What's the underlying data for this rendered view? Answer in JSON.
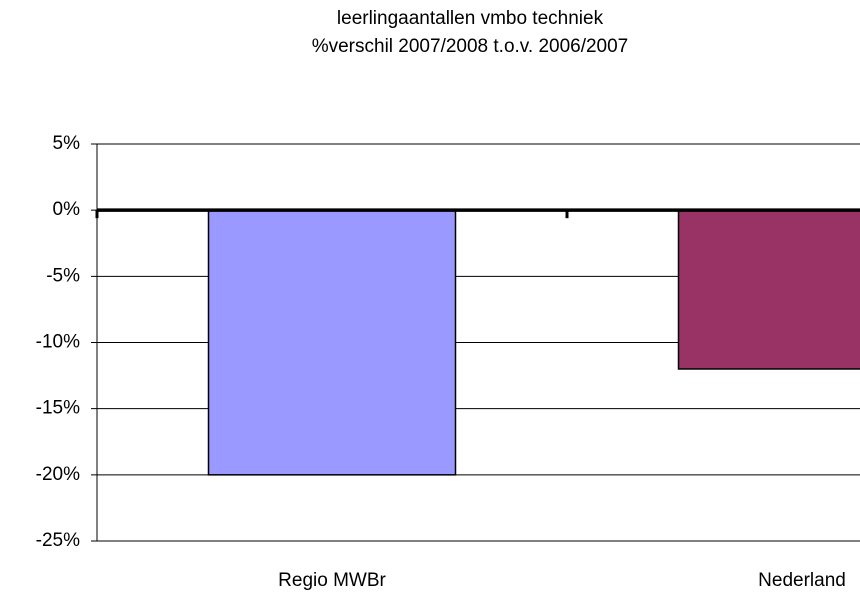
{
  "chart_data": {
    "type": "bar",
    "title": "leerlingaantallen vmbo techniek",
    "subtitle": "%verschil 2007/2008 t.o.v. 2006/2007",
    "categories": [
      "Regio MWBr",
      "Nederland"
    ],
    "series": [
      {
        "name": null,
        "colors": [
          "#9999ff",
          "#993366"
        ],
        "values": [
          -20,
          -12
        ]
      }
    ],
    "ylim": [
      -25,
      5
    ],
    "yticks": [
      {
        "value": -25,
        "label": "-25%"
      },
      {
        "value": -20,
        "label": "-20%"
      },
      {
        "value": -15,
        "label": "-15%"
      },
      {
        "value": -10,
        "label": "-10%"
      },
      {
        "value": -5,
        "label": "-5%"
      },
      {
        "value": 0,
        "label": "0%"
      },
      {
        "value": 5,
        "label": "5%"
      }
    ],
    "grid": true
  }
}
